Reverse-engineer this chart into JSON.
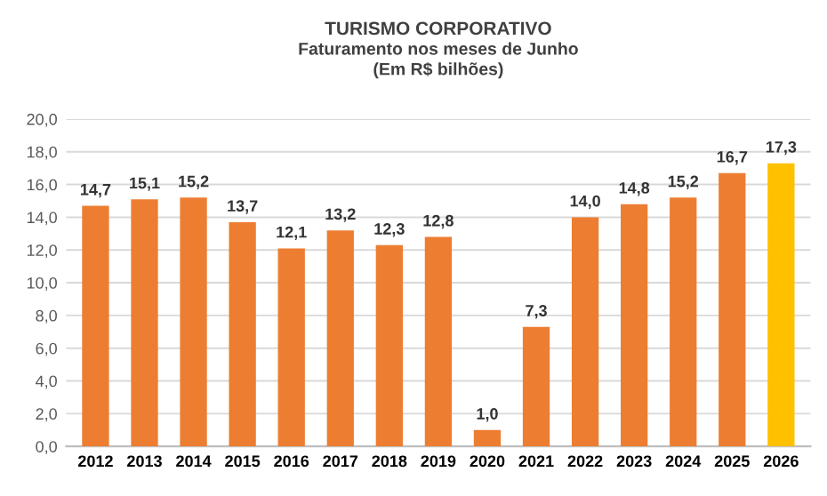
{
  "chart_data": {
    "type": "bar",
    "title": "TURISMO CORPORATIVO",
    "subtitle": "Faturamento nos meses de Junho\n(Em R$ bilhões)",
    "categories": [
      "2012",
      "2013",
      "2014",
      "2015",
      "2016",
      "2017",
      "2018",
      "2019",
      "2020",
      "2021",
      "2022",
      "2023",
      "2024",
      "2025",
      "2026"
    ],
    "values": [
      14.7,
      15.1,
      15.2,
      13.7,
      12.1,
      13.2,
      12.3,
      12.8,
      1.0,
      7.3,
      14.0,
      14.8,
      15.2,
      16.7,
      17.3
    ],
    "colors": [
      "#ed7d31",
      "#ed7d31",
      "#ed7d31",
      "#ed7d31",
      "#ed7d31",
      "#ed7d31",
      "#ed7d31",
      "#ed7d31",
      "#ed7d31",
      "#ed7d31",
      "#ed7d31",
      "#ed7d31",
      "#ed7d31",
      "#ed7d31",
      "#ffc000"
    ],
    "value_labels": [
      "14,7",
      "15,1",
      "15,2",
      "13,7",
      "12,1",
      "13,2",
      "12,3",
      "12,8",
      "1,0",
      "7,3",
      "14,0",
      "14,8",
      "15,2",
      "16,7",
      "17,3"
    ],
    "ylim": [
      0,
      20
    ],
    "yticks": [
      {
        "value": 0,
        "label": "0,0"
      },
      {
        "value": 2,
        "label": "2,0"
      },
      {
        "value": 4,
        "label": "4,0"
      },
      {
        "value": 6,
        "label": "6,0"
      },
      {
        "value": 8,
        "label": "8,0"
      },
      {
        "value": 10,
        "label": "10,0"
      },
      {
        "value": 12,
        "label": "12,0"
      },
      {
        "value": 14,
        "label": "14,0"
      },
      {
        "value": 16,
        "label": "16,0"
      },
      {
        "value": 18,
        "label": "18,0"
      },
      {
        "value": 20,
        "label": "20,0"
      }
    ],
    "grid": "y"
  }
}
